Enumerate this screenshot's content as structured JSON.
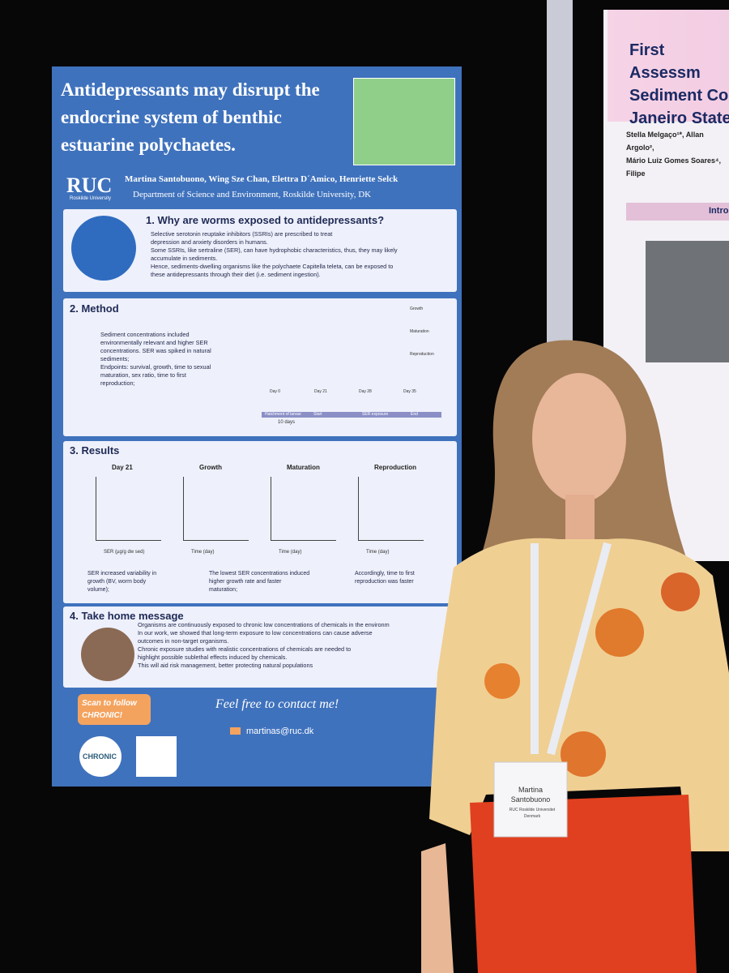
{
  "poster": {
    "title": [
      "Antidepressants may disrupt the",
      "endocrine system of benthic",
      "estuarine polychaetes."
    ],
    "logo": "RUC",
    "logo_sub": "Roskilde University",
    "authors": "Martina Santobuono, Wing Sze Chan, Elettra D´Amico, Henriette Selck",
    "affiliation": "Department of Science and Environment, Roskilde University, DK",
    "s1": {
      "heading": "1. Why are worms exposed to antidepressants?",
      "lines": [
        "Selective serotonin reuptake inhibitors (SSRIs) are prescribed to treat",
        "depression and anxiety disorders in humans.",
        "Some SSRIs, like sertraline (SER), can have hydrophobic characteristics, thus, they may likely",
        "accumulate in sediments.",
        "Hence, sediments-dwelling organisms like the polychaete Capitella teleta, can be exposed to",
        "these antidepressants through their diet (i.e. sediment ingestion)."
      ]
    },
    "s2": {
      "heading": "2. Method",
      "lines": [
        "Sediment concentrations included",
        "environmentally relevant and higher SER",
        "concentrations. SER was spiked in natural",
        "sediments;",
        "",
        "Endpoints: survival, growth, time to sexual",
        "maturation, sex ratio, time to first",
        "reproduction;"
      ],
      "endpoints": [
        "Growth",
        "Maturation",
        "Reproduction"
      ],
      "days": [
        "Day 0",
        "Day 21",
        "Day 28",
        "Day 35"
      ],
      "timeline": [
        "Hatchment of larvae",
        "Start",
        "SER exposure",
        "End"
      ],
      "duration": "10 days"
    },
    "s3": {
      "heading": "3. Results",
      "panels": [
        "Day 21",
        "Growth",
        "Maturation",
        "Reproduction"
      ],
      "x_labels": [
        "SER (µg/g dw sed)",
        "Time (day)",
        "Time (day)",
        "Time (day)"
      ],
      "notes": [
        [
          "SER increased variability in",
          "growth (BV, worm body",
          "volume);"
        ],
        [
          "The lowest SER concentrations induced",
          "higher growth rate and faster",
          "maturation;"
        ],
        [
          "Accordingly, time to first",
          "reproduction was faster"
        ]
      ]
    },
    "s4": {
      "heading": "4. Take home message",
      "lines": [
        "Organisms are continuously exposed to chronic low concentrations of chemicals in the environm",
        "In our work, we showed that long-term exposure to low concentrations can cause adverse",
        "outcomes in non-target organisms.",
        "Chronic exposure studies with realistic concentrations of chemicals are needed to",
        "highlight possible sublethal effects induced by chemicals.",
        "This will aid risk management, better protecting natural populations"
      ]
    },
    "follow": [
      "Scan to follow",
      "CHRONIC!"
    ],
    "contact": "Feel free to contact me!",
    "email": "martinas@ruc.dk",
    "chronic": "CHRONIC"
  },
  "right_poster": {
    "title": [
      "First Assessm",
      "Sediment Co",
      "Janeiro State"
    ],
    "authors": [
      "Stella Melgaço¹*, Allan Argolo²,",
      "Mário Luiz Gomes Soares⁴, Filipe"
    ],
    "intro": "Intro"
  },
  "badge": {
    "name": [
      "Martina",
      "Santobuono"
    ],
    "org": "RUC Roskilde Universitet",
    "country": "Denmark"
  }
}
